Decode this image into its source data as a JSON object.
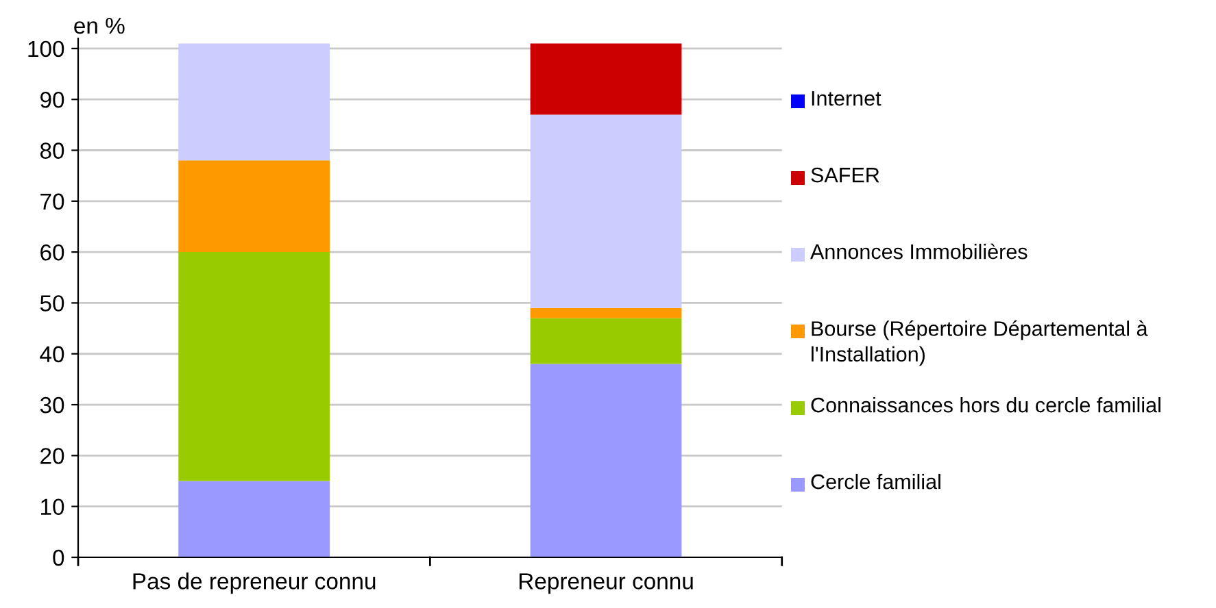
{
  "chart_data": {
    "type": "bar",
    "stacked": true,
    "ylabel": "en %",
    "categories": [
      "Pas de repreneur connu",
      "Repreneur connu"
    ],
    "series": [
      {
        "name": "Cercle familial",
        "color": "#9999ff",
        "values": [
          15,
          38
        ]
      },
      {
        "name": "Connaissances hors du cercle familial",
        "color": "#99cc00",
        "values": [
          45,
          9
        ]
      },
      {
        "name": "Bourse (Répertoire Départemental à l'Installation)",
        "color": "#ff9900",
        "values": [
          18,
          2
        ]
      },
      {
        "name": "Annonces Immobilières",
        "color": "#ccccff",
        "values": [
          23,
          38
        ]
      },
      {
        "name": "SAFER",
        "color": "#cc0000",
        "values": [
          0,
          14
        ]
      },
      {
        "name": "Internet",
        "color": "#0000ff",
        "values": [
          0,
          0
        ]
      }
    ],
    "ylim": [
      0,
      102
    ],
    "yticks": [
      0,
      10,
      20,
      30,
      40,
      50,
      60,
      70,
      80,
      90,
      100
    ],
    "grid": "y",
    "legend": "right"
  }
}
